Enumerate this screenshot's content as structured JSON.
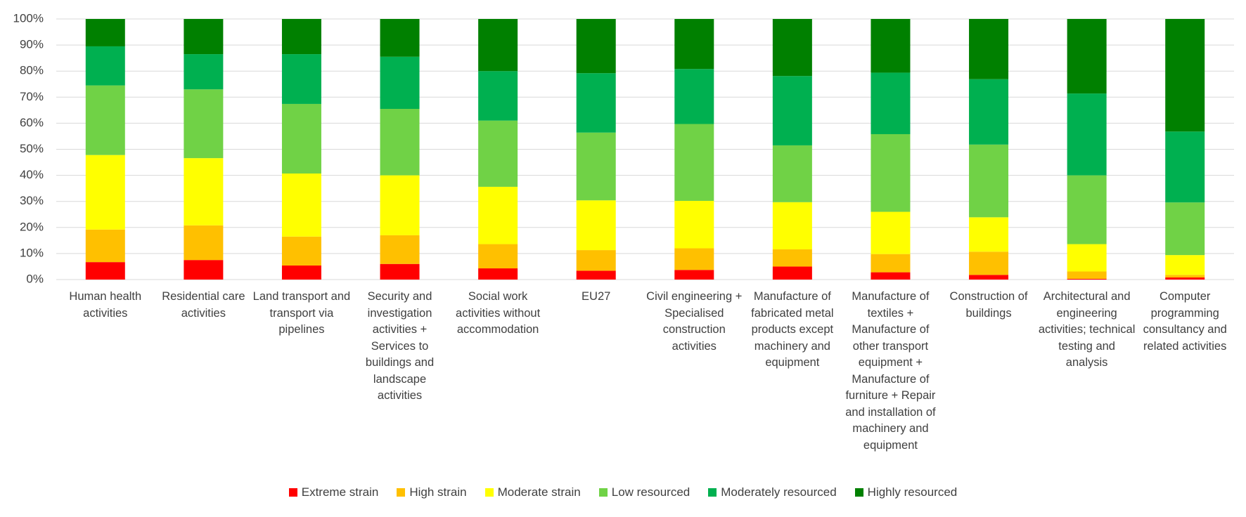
{
  "chart_data": {
    "type": "stacked_bar_100",
    "categories": [
      "Human health activities",
      "Residential care activities",
      "Land transport and transport via pipelines",
      "Security and investigation activities + Services to buildings and landscape activities",
      "Social work activities without accommodation",
      "EU27",
      "Civil engineering + Specialised construction activities",
      "Manufacture of fabricated metal products except machinery and equipment",
      "Manufacture of textiles + Manufacture of other transport equipment + Manufacture of furniture + Repair and installation of machinery and equipment",
      "Construction of buildings",
      "Architectural and engineering activities; technical testing and analysis",
      "Computer programming consultancy and related activities"
    ],
    "series": [
      {
        "name": "Extreme strain",
        "color": "#ff0000",
        "values": [
          6.7,
          7.5,
          5.4,
          6.0,
          4.3,
          3.4,
          3.7,
          5.0,
          2.8,
          1.8,
          0.3,
          0.8
        ]
      },
      {
        "name": "High strain",
        "color": "#ffc000",
        "values": [
          12.5,
          13.3,
          11.1,
          11.0,
          9.3,
          7.9,
          8.3,
          6.6,
          7.0,
          8.9,
          2.8,
          1.0
        ]
      },
      {
        "name": "Moderate strain",
        "color": "#ffff00",
        "values": [
          28.6,
          25.8,
          24.2,
          23.0,
          22.0,
          19.1,
          18.2,
          18.1,
          16.2,
          13.2,
          10.5,
          7.6
        ]
      },
      {
        "name": "Low resourced",
        "color": "#70d246",
        "values": [
          26.7,
          26.4,
          26.7,
          25.5,
          25.4,
          26.0,
          29.5,
          21.8,
          29.8,
          27.9,
          26.4,
          20.2
        ]
      },
      {
        "name": "Moderately resourced",
        "color": "#00b050",
        "values": [
          15.0,
          13.5,
          19.1,
          20.0,
          19.0,
          22.8,
          21.1,
          26.6,
          23.6,
          25.1,
          31.4,
          27.2
        ]
      },
      {
        "name": "Highly resourced",
        "color": "#008000",
        "values": [
          10.5,
          13.5,
          13.5,
          14.5,
          20.0,
          20.8,
          19.2,
          21.9,
          20.6,
          23.1,
          28.6,
          43.2
        ]
      }
    ],
    "ylim": [
      0,
      100
    ],
    "yticks": [
      {
        "value": 0,
        "label": "0%"
      },
      {
        "value": 10,
        "label": "10%"
      },
      {
        "value": 20,
        "label": "20%"
      },
      {
        "value": 30,
        "label": "30%"
      },
      {
        "value": 40,
        "label": "40%"
      },
      {
        "value": 50,
        "label": "50%"
      },
      {
        "value": 60,
        "label": "60%"
      },
      {
        "value": 70,
        "label": "70%"
      },
      {
        "value": 80,
        "label": "80%"
      },
      {
        "value": 90,
        "label": "90%"
      },
      {
        "value": 100,
        "label": "100%"
      }
    ],
    "grid": true,
    "legend": "bottom"
  }
}
